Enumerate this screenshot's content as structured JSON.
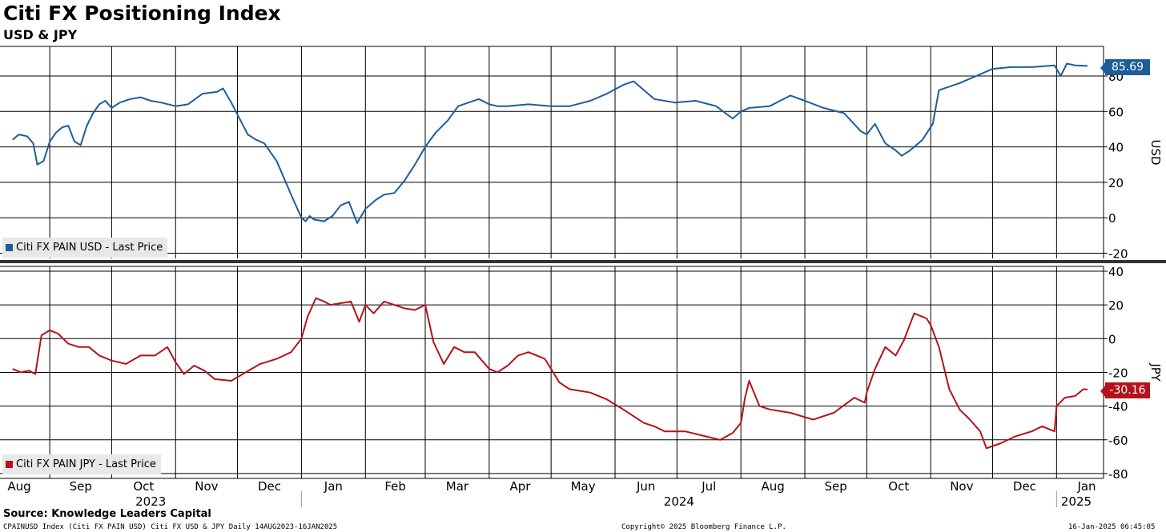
{
  "header": {
    "title": "Citi FX Positioning Index",
    "subtitle": "USD & JPY"
  },
  "footer": {
    "source": "Source: Knowledge Leaders Capital",
    "ticker_line": "CPAINUSD Index (Citi FX PAIN USD) Citi FX USD & JPY  Daily 14AUG2023-16JAN2025",
    "copyright": "Copyright© 2025 Bloomberg Finance L.P.",
    "timestamp": "16-Jan-2025 06:45:05"
  },
  "colors": {
    "usd": "#1e5d99",
    "jpy": "#b5121b",
    "grid": "#000000",
    "divider": "#333333"
  },
  "chart_data": [
    {
      "type": "line",
      "panel": "top",
      "ylabel": "USD",
      "ylim": [
        -22,
        95
      ],
      "yticks": [
        80,
        60,
        40,
        20,
        0,
        -20
      ],
      "grid": true,
      "last_value_label": "85.69",
      "legend": {
        "placement": "bottom-left",
        "entries": [
          "Citi FX PAIN USD - Last Price"
        ]
      },
      "series": [
        {
          "name": "Citi FX PAIN USD - Last Price",
          "x": [
            "2023-08-14",
            "2023-08-17",
            "2023-08-21",
            "2023-08-24",
            "2023-08-26",
            "2023-08-29",
            "2023-09-01",
            "2023-09-04",
            "2023-09-07",
            "2023-09-10",
            "2023-09-13",
            "2023-09-16",
            "2023-09-19",
            "2023-09-22",
            "2023-09-25",
            "2023-09-28",
            "2023-10-01",
            "2023-10-05",
            "2023-10-10",
            "2023-10-15",
            "2023-10-20",
            "2023-10-25",
            "2023-11-01",
            "2023-11-07",
            "2023-11-14",
            "2023-11-21",
            "2023-11-24",
            "2023-11-28",
            "2023-12-02",
            "2023-12-06",
            "2023-12-10",
            "2023-12-14",
            "2023-12-20",
            "2023-12-27",
            "2024-01-01",
            "2024-01-03",
            "2024-01-05",
            "2024-01-07",
            "2024-01-12",
            "2024-01-16",
            "2024-01-20",
            "2024-01-24",
            "2024-01-28",
            "2024-02-01",
            "2024-02-03",
            "2024-02-06",
            "2024-02-10",
            "2024-02-15",
            "2024-02-20",
            "2024-02-25",
            "2024-03-01",
            "2024-03-06",
            "2024-03-12",
            "2024-03-17",
            "2024-03-22",
            "2024-03-27",
            "2024-04-01",
            "2024-04-05",
            "2024-04-10",
            "2024-04-20",
            "2024-05-01",
            "2024-05-10",
            "2024-05-20",
            "2024-05-28",
            "2024-06-05",
            "2024-06-10",
            "2024-06-14",
            "2024-06-20",
            "2024-06-30",
            "2024-07-10",
            "2024-07-20",
            "2024-07-28",
            "2024-08-01",
            "2024-08-05",
            "2024-08-15",
            "2024-08-25",
            "2024-09-01",
            "2024-09-10",
            "2024-09-20",
            "2024-09-28",
            "2024-10-01",
            "2024-10-05",
            "2024-10-10",
            "2024-10-15",
            "2024-10-18",
            "2024-10-22",
            "2024-10-28",
            "2024-11-02",
            "2024-11-05",
            "2024-11-15",
            "2024-11-25",
            "2024-12-01",
            "2024-12-10",
            "2024-12-20",
            "2024-12-31",
            "2025-01-03",
            "2025-01-06",
            "2025-01-10",
            "2025-01-16"
          ],
          "values": [
            44,
            47,
            46,
            42,
            30,
            32,
            43,
            48,
            51,
            52,
            43,
            41,
            52,
            59,
            64,
            66,
            62,
            65,
            67,
            68,
            66,
            65,
            63,
            64,
            70,
            71,
            73,
            65,
            56,
            47,
            44,
            42,
            32,
            13,
            0,
            -2,
            1,
            -1,
            -2,
            1,
            7,
            9,
            -3,
            5,
            7,
            10,
            13,
            14,
            21,
            30,
            40,
            48,
            55,
            63,
            65,
            67,
            64,
            63,
            63,
            64,
            63,
            63,
            66,
            70,
            75,
            77,
            73,
            67,
            65,
            66,
            63,
            56,
            60,
            62,
            63,
            69,
            66,
            62,
            59,
            49,
            47,
            53,
            42,
            38,
            35,
            38,
            44,
            53,
            72,
            76,
            81,
            84,
            85,
            85,
            86,
            80,
            87,
            86,
            85.69
          ]
        }
      ]
    },
    {
      "type": "line",
      "panel": "bottom",
      "ylabel": "JPY",
      "ylim": [
        -82,
        42
      ],
      "yticks": [
        40,
        20,
        0,
        -20,
        -40,
        -60,
        -80
      ],
      "grid": true,
      "last_value_label": "-30.16",
      "legend": {
        "placement": "bottom-left",
        "entries": [
          "Citi FX PAIN JPY - Last Price"
        ]
      },
      "x_axis": {
        "month_labels": [
          "Aug",
          "Sep",
          "Oct",
          "Nov",
          "Dec",
          "Jan",
          "Feb",
          "Mar",
          "Apr",
          "May",
          "Jun",
          "Jul",
          "Aug",
          "Sep",
          "Oct",
          "Nov",
          "Dec",
          "Jan"
        ],
        "year_labels": [
          "2023",
          "2024",
          "2025"
        ]
      },
      "series": [
        {
          "name": "Citi FX PAIN JPY - Last Price",
          "x": [
            "2023-08-14",
            "2023-08-18",
            "2023-08-22",
            "2023-08-25",
            "2023-08-28",
            "2023-09-01",
            "2023-09-05",
            "2023-09-10",
            "2023-09-15",
            "2023-09-20",
            "2023-09-25",
            "2023-10-01",
            "2023-10-08",
            "2023-10-15",
            "2023-10-22",
            "2023-10-28",
            "2023-11-01",
            "2023-11-05",
            "2023-11-10",
            "2023-11-15",
            "2023-11-20",
            "2023-11-28",
            "2023-12-05",
            "2023-12-12",
            "2023-12-20",
            "2023-12-27",
            "2024-01-01",
            "2024-01-04",
            "2024-01-08",
            "2024-01-12",
            "2024-01-15",
            "2024-01-20",
            "2024-01-25",
            "2024-01-29",
            "2024-02-01",
            "2024-02-05",
            "2024-02-10",
            "2024-02-15",
            "2024-02-20",
            "2024-02-25",
            "2024-03-01",
            "2024-03-05",
            "2024-03-10",
            "2024-03-15",
            "2024-03-20",
            "2024-03-25",
            "2024-04-01",
            "2024-04-05",
            "2024-04-10",
            "2024-04-15",
            "2024-04-20",
            "2024-04-28",
            "2024-05-01",
            "2024-05-05",
            "2024-05-10",
            "2024-05-20",
            "2024-05-28",
            "2024-06-05",
            "2024-06-15",
            "2024-06-20",
            "2024-06-25",
            "2024-07-05",
            "2024-07-15",
            "2024-07-22",
            "2024-07-28",
            "2024-08-01",
            "2024-08-03",
            "2024-08-05",
            "2024-08-10",
            "2024-08-15",
            "2024-08-25",
            "2024-09-05",
            "2024-09-15",
            "2024-09-25",
            "2024-09-30",
            "2024-10-01",
            "2024-10-05",
            "2024-10-10",
            "2024-10-15",
            "2024-10-19",
            "2024-10-24",
            "2024-10-30",
            "2024-11-01",
            "2024-11-05",
            "2024-11-10",
            "2024-11-15",
            "2024-11-20",
            "2024-11-25",
            "2024-11-28",
            "2024-12-05",
            "2024-12-12",
            "2024-12-20",
            "2024-12-25",
            "2024-12-31",
            "2025-01-01",
            "2025-01-05",
            "2025-01-10",
            "2025-01-14",
            "2025-01-16"
          ],
          "values": [
            -18,
            -20,
            -19,
            -21,
            2,
            5,
            3,
            -3,
            -5,
            -5,
            -10,
            -13,
            -15,
            -10,
            -10,
            -5,
            -14,
            -21,
            -16,
            -19,
            -24,
            -25,
            -20,
            -15,
            -12,
            -8,
            0,
            13,
            24,
            22,
            20,
            21,
            22,
            10,
            20,
            15,
            22,
            20,
            18,
            17,
            20,
            -2,
            -15,
            -5,
            -8,
            -8,
            -18,
            -20,
            -16,
            -10,
            -8,
            -12,
            -18,
            -26,
            -30,
            -32,
            -36,
            -42,
            -50,
            -52,
            -55,
            -55,
            -58,
            -60,
            -56,
            -50,
            -35,
            -25,
            -40,
            -42,
            -44,
            -48,
            -44,
            -35,
            -38,
            -32,
            -18,
            -5,
            -10,
            -1,
            15,
            12,
            8,
            -5,
            -30,
            -42,
            -48,
            -55,
            -65,
            -62,
            -58,
            -55,
            -52,
            -55,
            -40,
            -35,
            -34,
            -30,
            -30.16
          ]
        }
      ]
    }
  ]
}
